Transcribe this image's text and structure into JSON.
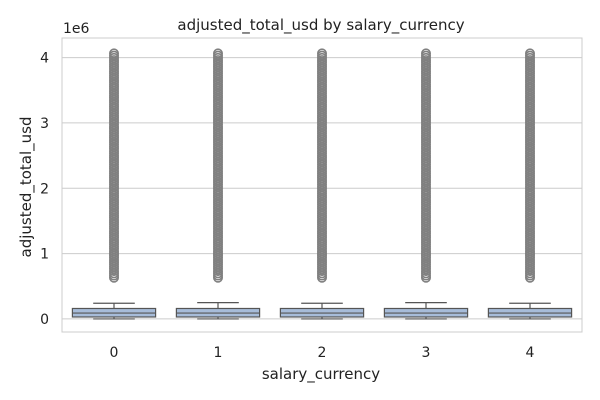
{
  "chart_data": {
    "type": "box",
    "title": "adjusted_total_usd by salary_currency",
    "xlabel": "salary_currency",
    "ylabel": "adjusted_total_usd",
    "y_offset_label": "1e6",
    "categories": [
      "0",
      "1",
      "2",
      "3",
      "4"
    ],
    "y_ticks": [
      0,
      1,
      2,
      3,
      4
    ],
    "ylim": [
      -0.2,
      4.3
    ],
    "y_scale_multiplier": 1000000,
    "grid": "horizontal",
    "box_color": "#a7bcd9",
    "outlier_color": "#808080",
    "series": [
      {
        "category": "0",
        "whisker_low": 0.0,
        "q1": 0.03,
        "median": 0.09,
        "q3": 0.16,
        "whisker_high": 0.24,
        "outlier_min": 0.63,
        "outlier_max": 4.08
      },
      {
        "category": "1",
        "whisker_low": 0.0,
        "q1": 0.03,
        "median": 0.09,
        "q3": 0.16,
        "whisker_high": 0.25,
        "outlier_min": 0.63,
        "outlier_max": 4.08
      },
      {
        "category": "2",
        "whisker_low": 0.0,
        "q1": 0.03,
        "median": 0.09,
        "q3": 0.16,
        "whisker_high": 0.24,
        "outlier_min": 0.63,
        "outlier_max": 4.08
      },
      {
        "category": "3",
        "whisker_low": 0.0,
        "q1": 0.03,
        "median": 0.09,
        "q3": 0.16,
        "whisker_high": 0.25,
        "outlier_min": 0.63,
        "outlier_max": 4.08
      },
      {
        "category": "4",
        "whisker_low": 0.0,
        "q1": 0.03,
        "median": 0.09,
        "q3": 0.16,
        "whisker_high": 0.24,
        "outlier_min": 0.63,
        "outlier_max": 4.08
      }
    ]
  }
}
